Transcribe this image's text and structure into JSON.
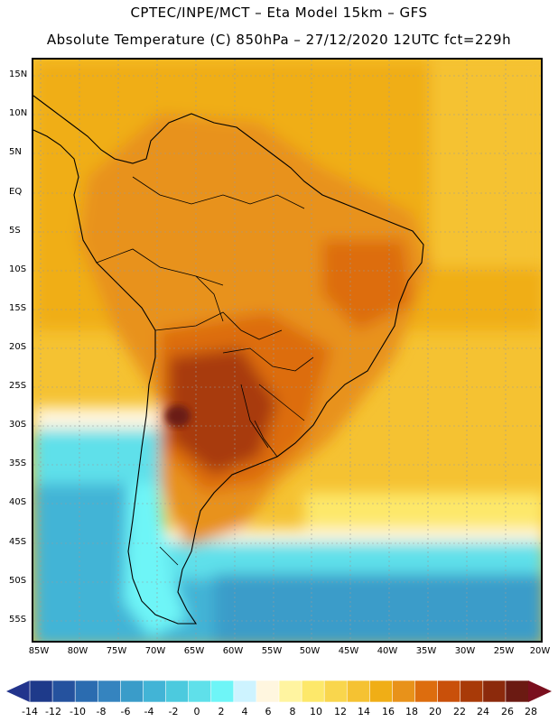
{
  "header": {
    "line1": "CPTEC/INPE/MCT –  Eta Model 15km – GFS",
    "line2": "Absolute Temperature (C) 850hPa – 27/12/2020 12UTC fct=229h"
  },
  "axes": {
    "lat_labels": [
      "15N",
      "10N",
      "5N",
      "EQ",
      "5S",
      "10S",
      "15S",
      "20S",
      "25S",
      "30S",
      "35S",
      "40S",
      "45S",
      "50S",
      "55S"
    ],
    "lon_labels": [
      "85W",
      "80W",
      "75W",
      "70W",
      "65W",
      "60W",
      "55W",
      "50W",
      "45W",
      "40W",
      "35W",
      "30W",
      "25W",
      "20W"
    ]
  },
  "colorbar": {
    "labels": [
      "-14",
      "-12",
      "-10",
      "-8",
      "-6",
      "-4",
      "-2",
      "0",
      "2",
      "4",
      "6",
      "8",
      "10",
      "12",
      "14",
      "16",
      "18",
      "20",
      "22",
      "24",
      "26",
      "28"
    ],
    "colors": [
      "#1e3a8a",
      "#25529e",
      "#2b6cb0",
      "#3584bf",
      "#3a9cc9",
      "#42b4d6",
      "#4ccade",
      "#5fe0ea",
      "#6ef5f7",
      "#cdf3ff",
      "#fff6df",
      "#fff4a0",
      "#fde86a",
      "#f9d64d",
      "#f5c232",
      "#f0ae16",
      "#e8921a",
      "#dd6d0e",
      "#c9500a",
      "#a83a08",
      "#8c2a0c",
      "#6b1a12"
    ],
    "under_color": "#22348c",
    "over_color": "#7a0f1e"
  },
  "legend_key": {
    "map_region": "South America temperature field"
  }
}
